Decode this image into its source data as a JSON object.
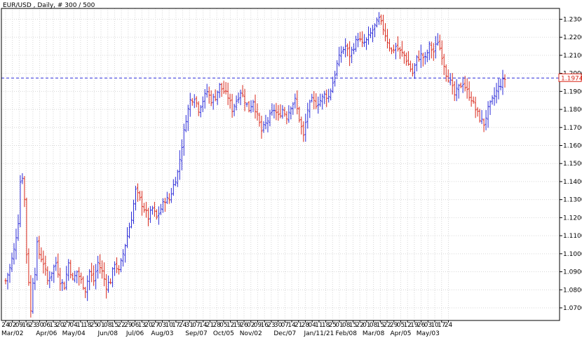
{
  "header": {
    "title": "EUR/USD , Daily, # 300 / 500"
  },
  "price_marker": {
    "value": "1.1974",
    "color": "#d9291c"
  },
  "colors": {
    "up_bar": "#2b2bd8",
    "down_bar": "#d9291c",
    "reference_line": "#2b2bd8",
    "grid": "#d6d6d6",
    "axis": "#000000"
  },
  "chart_data": {
    "type": "ohlc",
    "instrument": "EUR/USD",
    "timeframe": "Daily",
    "bar_count": "300 / 500",
    "reference_line": 1.1974,
    "ylim": [
      1.063,
      1.236
    ],
    "grid": true,
    "y_ticks": [
      "1.0700",
      "1.0800",
      "1.0900",
      "1.1000",
      "1.1100",
      "1.1200",
      "1.1300",
      "1.1400",
      "1.1500",
      "1.1600",
      "1.1700",
      "1.1800",
      "1.1900",
      "1.2000",
      "1.2100",
      "1.2200",
      "1.2300"
    ],
    "x_ticks": [
      "24",
      "02",
      "09",
      "16",
      "23",
      "30",
      "06",
      "13",
      "20",
      "27",
      "04",
      "11",
      "18",
      "25",
      "01",
      "08",
      "15",
      "22",
      "29",
      "06",
      "13",
      "20",
      "27",
      "03",
      "10",
      "17",
      "24",
      "31",
      "07",
      "14",
      "21",
      "28",
      "05",
      "12",
      "19",
      "26",
      "02",
      "09",
      "16",
      "23",
      "30",
      "07",
      "14",
      "21",
      "28",
      "04",
      "11",
      "18",
      "25",
      "01",
      "08",
      "15",
      "22",
      "01",
      "08",
      "15",
      "22",
      "29",
      "05",
      "12",
      "19",
      "26",
      "03",
      "10",
      "17",
      "24"
    ],
    "month_labels": [
      {
        "text": "Mar/02",
        "tick": 1
      },
      {
        "text": "Apr/06",
        "tick": 6
      },
      {
        "text": "May/04",
        "tick": 10
      },
      {
        "text": "Jun/08",
        "tick": 15
      },
      {
        "text": "Jul/06",
        "tick": 19
      },
      {
        "text": "Aug/03",
        "tick": 23
      },
      {
        "text": "Sep/07",
        "tick": 28
      },
      {
        "text": "Oct/05",
        "tick": 32
      },
      {
        "text": "Nov/02",
        "tick": 36
      },
      {
        "text": "Dec/07",
        "tick": 41
      },
      {
        "text": "Jan/11/21",
        "tick": 46
      },
      {
        "text": "Feb/08",
        "tick": 50
      },
      {
        "text": "Mar/08",
        "tick": 54
      },
      {
        "text": "Apr/05",
        "tick": 58
      },
      {
        "text": "May/03",
        "tick": 62
      }
    ],
    "anchors": [
      [
        0,
        1.085
      ],
      [
        2,
        1.092
      ],
      [
        4,
        1.102
      ],
      [
        6,
        1.118
      ],
      [
        7,
        1.14
      ],
      [
        8,
        1.143
      ],
      [
        9,
        1.13
      ],
      [
        10,
        1.1
      ],
      [
        11,
        1.085
      ],
      [
        12,
        1.068
      ],
      [
        13,
        1.085
      ],
      [
        14,
        1.09
      ],
      [
        15,
        1.105
      ],
      [
        16,
        1.1
      ],
      [
        18,
        1.095
      ],
      [
        20,
        1.085
      ],
      [
        22,
        1.09
      ],
      [
        24,
        1.095
      ],
      [
        26,
        1.085
      ],
      [
        28,
        1.082
      ],
      [
        30,
        1.095
      ],
      [
        32,
        1.085
      ],
      [
        34,
        1.09
      ],
      [
        36,
        1.085
      ],
      [
        38,
        1.08
      ],
      [
        40,
        1.09
      ],
      [
        42,
        1.085
      ],
      [
        44,
        1.095
      ],
      [
        46,
        1.09
      ],
      [
        48,
        1.082
      ],
      [
        50,
        1.085
      ],
      [
        52,
        1.095
      ],
      [
        54,
        1.09
      ],
      [
        56,
        1.1
      ],
      [
        58,
        1.11
      ],
      [
        60,
        1.12
      ],
      [
        62,
        1.135
      ],
      [
        64,
        1.13
      ],
      [
        66,
        1.125
      ],
      [
        68,
        1.12
      ],
      [
        70,
        1.125
      ],
      [
        72,
        1.12
      ],
      [
        74,
        1.125
      ],
      [
        76,
        1.13
      ],
      [
        78,
        1.13
      ],
      [
        80,
        1.138
      ],
      [
        82,
        1.145
      ],
      [
        84,
        1.16
      ],
      [
        86,
        1.175
      ],
      [
        88,
        1.185
      ],
      [
        90,
        1.187
      ],
      [
        92,
        1.18
      ],
      [
        94,
        1.185
      ],
      [
        96,
        1.19
      ],
      [
        98,
        1.185
      ],
      [
        100,
        1.187
      ],
      [
        102,
        1.193
      ],
      [
        104,
        1.19
      ],
      [
        106,
        1.187
      ],
      [
        108,
        1.18
      ],
      [
        110,
        1.185
      ],
      [
        112,
        1.19
      ],
      [
        114,
        1.185
      ],
      [
        116,
        1.18
      ],
      [
        118,
        1.185
      ],
      [
        120,
        1.176
      ],
      [
        122,
        1.168
      ],
      [
        124,
        1.172
      ],
      [
        126,
        1.176
      ],
      [
        128,
        1.18
      ],
      [
        130,
        1.176
      ],
      [
        132,
        1.18
      ],
      [
        134,
        1.176
      ],
      [
        136,
        1.182
      ],
      [
        138,
        1.185
      ],
      [
        140,
        1.175
      ],
      [
        142,
        1.165
      ],
      [
        144,
        1.18
      ],
      [
        146,
        1.185
      ],
      [
        148,
        1.183
      ],
      [
        150,
        1.185
      ],
      [
        152,
        1.188
      ],
      [
        154,
        1.187
      ],
      [
        156,
        1.195
      ],
      [
        158,
        1.205
      ],
      [
        160,
        1.212
      ],
      [
        162,
        1.215
      ],
      [
        164,
        1.21
      ],
      [
        166,
        1.215
      ],
      [
        168,
        1.22
      ],
      [
        170,
        1.216
      ],
      [
        172,
        1.218
      ],
      [
        174,
        1.222
      ],
      [
        176,
        1.226
      ],
      [
        178,
        1.23
      ],
      [
        180,
        1.225
      ],
      [
        182,
        1.218
      ],
      [
        184,
        1.212
      ],
      [
        186,
        1.215
      ],
      [
        188,
        1.212
      ],
      [
        190,
        1.21
      ],
      [
        192,
        1.205
      ],
      [
        194,
        1.2
      ],
      [
        196,
        1.208
      ],
      [
        198,
        1.21
      ],
      [
        200,
        1.208
      ],
      [
        202,
        1.215
      ],
      [
        204,
        1.212
      ],
      [
        206,
        1.218
      ],
      [
        208,
        1.21
      ],
      [
        210,
        1.2
      ],
      [
        212,
        1.195
      ],
      [
        214,
        1.188
      ],
      [
        216,
        1.192
      ],
      [
        218,
        1.195
      ],
      [
        220,
        1.19
      ],
      [
        222,
        1.186
      ],
      [
        224,
        1.18
      ],
      [
        226,
        1.175
      ],
      [
        228,
        1.172
      ],
      [
        230,
        1.18
      ],
      [
        232,
        1.185
      ],
      [
        234,
        1.19
      ],
      [
        236,
        1.194
      ],
      [
        238,
        1.197
      ]
    ]
  }
}
